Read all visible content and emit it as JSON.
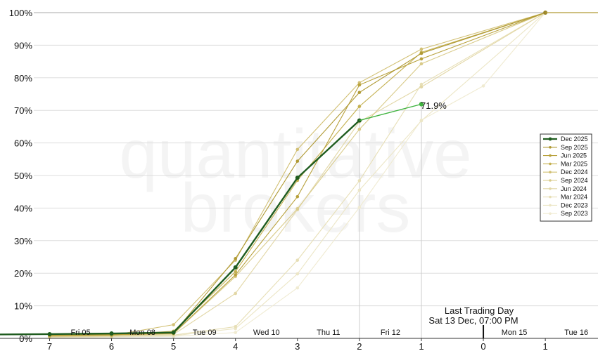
{
  "watermark": {
    "line1": "quantitative",
    "line2": "brokers"
  },
  "chart_data": {
    "type": "line",
    "x": [
      7,
      6,
      5,
      4,
      3,
      2,
      1,
      0,
      -1
    ],
    "x_tick_labels": [
      "7",
      "6",
      "5",
      "4",
      "3",
      "2",
      "1",
      "0",
      "1"
    ],
    "y_tick_labels": [
      "0%",
      "10%",
      "20%",
      "30%",
      "40%",
      "50%",
      "60%",
      "70%",
      "80%",
      "90%",
      "100%"
    ],
    "ylim": [
      0,
      100
    ],
    "xlim": [
      7.8,
      -1.85
    ],
    "grid": true,
    "legend_position": "right",
    "day_labels": [
      {
        "x": 6.5,
        "label": "Fri 05"
      },
      {
        "x": 5.5,
        "label": "Mon 08"
      },
      {
        "x": 4.5,
        "label": "Tue 09"
      },
      {
        "x": 3.5,
        "label": "Wed 10"
      },
      {
        "x": 2.5,
        "label": "Thu 11"
      },
      {
        "x": 1.5,
        "label": "Fri 12"
      },
      {
        "x": -0.5,
        "label": "Mon 15"
      },
      {
        "x": -1.5,
        "label": "Tue 16"
      }
    ],
    "annotation": {
      "line1": "Last Trading Day",
      "line2": "Sat 13 Dec, 07:00 PM",
      "x": 0
    },
    "current_label": {
      "text": "71.9%",
      "x": 1,
      "y": 71.9
    },
    "series": [
      {
        "name": "Dec 2025",
        "color": "#1f5c1f",
        "x": [
          7.8,
          7,
          6,
          5,
          4,
          3,
          2
        ],
        "values": [
          1.2,
          1.3,
          1.5,
          1.8,
          21.8,
          49.3,
          66.9
        ]
      },
      {
        "name": "Sep 2025",
        "color": "#b09a35",
        "x": [
          7,
          6,
          5,
          4,
          3,
          2,
          1,
          -1
        ],
        "values": [
          1.0,
          1.2,
          1.6,
          24.5,
          54.4,
          75.5,
          87.5,
          100
        ]
      },
      {
        "name": "Jun 2025",
        "color": "#b8a13c",
        "x": [
          7,
          6,
          5,
          4,
          3,
          2,
          1,
          -1
        ],
        "values": [
          0.9,
          1.1,
          1.5,
          19.5,
          43.5,
          77.8,
          85.8,
          100
        ]
      },
      {
        "name": "Mar 2025",
        "color": "#c4b050",
        "x": [
          7,
          6,
          5,
          4,
          3,
          2,
          1,
          -1
        ],
        "values": [
          0.8,
          1.0,
          2.2,
          20.5,
          48.5,
          71.2,
          87.8,
          100
        ]
      },
      {
        "name": "Dec 2024",
        "color": "#d2c074",
        "x": [
          7,
          6,
          5,
          4,
          3,
          2,
          1,
          -1
        ],
        "values": [
          0.7,
          0.9,
          4.2,
          24.0,
          58.0,
          78.5,
          88.8,
          100
        ]
      },
      {
        "name": "Sep 2024",
        "color": "#d9cb8a",
        "x": [
          7,
          6,
          5,
          4,
          3,
          2,
          1,
          -1
        ],
        "values": [
          0.6,
          0.8,
          1.4,
          19.0,
          39.8,
          64.2,
          84.3,
          100
        ]
      },
      {
        "name": "Jun 2024",
        "color": "#e2d7a6",
        "x": [
          7,
          6,
          5,
          4,
          3,
          2,
          1,
          -1
        ],
        "values": [
          0.5,
          0.7,
          1.2,
          13.8,
          39.5,
          66.5,
          77.2,
          100
        ]
      },
      {
        "name": "Mar 2024",
        "color": "#e7dfb6",
        "x": [
          7,
          6,
          5,
          4,
          3,
          2,
          1,
          -1
        ],
        "values": [
          0.4,
          0.6,
          1.0,
          3.6,
          24.0,
          48.4,
          78.0,
          100
        ]
      },
      {
        "name": "Dec 2023",
        "color": "#ece6c6",
        "x": [
          7,
          6,
          5,
          4,
          3,
          2,
          1,
          -1
        ],
        "values": [
          0.3,
          0.5,
          0.8,
          3.0,
          19.8,
          45.5,
          66.8,
          100
        ]
      },
      {
        "name": "Sep 2023",
        "color": "#f0ebd2",
        "x": [
          7,
          6,
          5,
          4,
          3,
          2,
          1,
          0,
          -1
        ],
        "values": [
          0.2,
          0.4,
          0.6,
          1.8,
          15.5,
          40.2,
          67.0,
          77.5,
          100
        ]
      }
    ],
    "current_extension": {
      "color": "#3fb33f",
      "x": [
        2,
        1
      ],
      "values": [
        66.9,
        71.9
      ]
    }
  }
}
